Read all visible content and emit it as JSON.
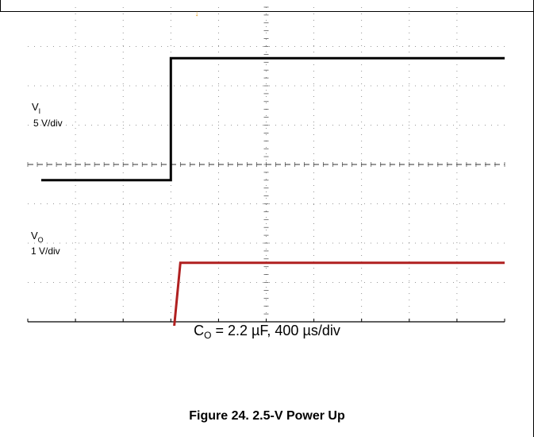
{
  "chart_data": {
    "type": "line",
    "title": "",
    "xlabel": "",
    "ylabel": "",
    "x_unit": "µs",
    "x_per_div": 400,
    "grid": true,
    "series": [
      {
        "name": "VI",
        "color": "#000000",
        "scale_label": "5 V/div",
        "x": [
          -2000,
          -800,
          -800,
          2000
        ],
        "y_div": [
          -0.4,
          -0.4,
          2.7,
          2.7
        ]
      },
      {
        "name": "VO",
        "color": "#b02020",
        "scale_label": "1 V/div",
        "x": [
          -2000,
          -800,
          -720,
          2000
        ],
        "y_div": [
          -5.0,
          -5.0,
          -2.5,
          -2.5
        ]
      }
    ]
  },
  "labels": {
    "vi_main": "V",
    "vi_sub": "I",
    "vi_scale": "5 V/div",
    "vo_main": "V",
    "vo_sub": "O",
    "vo_scale": "1 V/div",
    "trigger_marker": "↓"
  },
  "caption": {
    "co_main": "C",
    "co_sub": "O",
    "co_rest": " = 2.2 µF, 400 µs/div"
  },
  "figure_title": "Figure 24. 2.5-V Power Up",
  "colors": {
    "grid": "#777777",
    "trigger": "#e8a020",
    "vi_trace": "#000000",
    "vo_trace": "#b02020"
  }
}
